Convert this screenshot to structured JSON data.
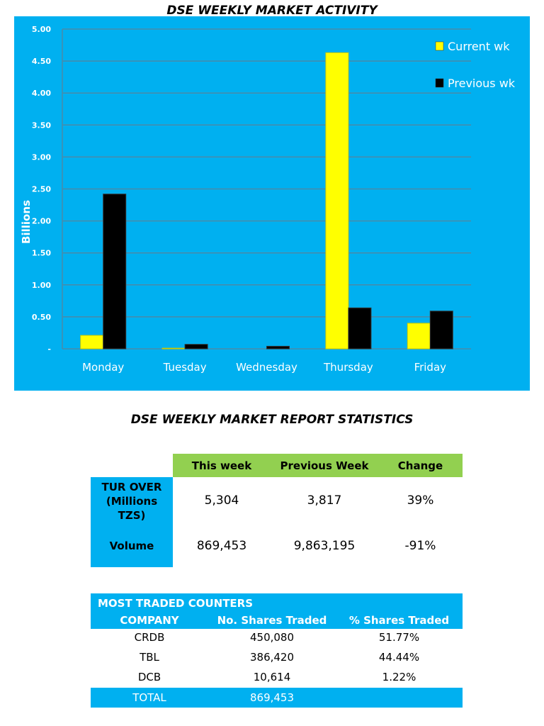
{
  "chart_data": {
    "type": "bar",
    "title": "DSE WEEKLY MARKET ACTIVITY",
    "ylabel": "Billions",
    "xlabel": "",
    "categories": [
      "Monday",
      "Tuesday",
      "Wednesday",
      "Thursday",
      "Friday"
    ],
    "series": [
      {
        "name": "Current wk",
        "color": "#ffff00",
        "values": [
          0.21,
          0.01,
          0.0,
          4.63,
          0.4
        ]
      },
      {
        "name": "Previous wk",
        "color": "#000000",
        "values": [
          2.42,
          0.07,
          0.04,
          0.64,
          0.59
        ]
      }
    ],
    "ylim": [
      0,
      5
    ],
    "yticks": [
      "-",
      "0.50",
      "1.00",
      "1.50",
      "2.00",
      "2.50",
      "3.00",
      "3.50",
      "4.00",
      "4.50",
      "5.00"
    ],
    "grid": true,
    "legend": "top-right",
    "background": "#00b0f0"
  },
  "stats": {
    "title": "DSE WEEKLY MARKET REPORT STATISTICS",
    "headers": [
      "This week",
      "Previous Week",
      "Change"
    ],
    "rows": [
      {
        "label": "TUR OVER (Millions TZS)",
        "values": [
          "5,304",
          "3,817",
          "39%"
        ]
      },
      {
        "label": "Volume",
        "values": [
          "869,453",
          "9,863,195",
          "-91%"
        ]
      }
    ]
  },
  "counters": {
    "title": "MOST TRADED COUNTERS",
    "headers": [
      "COMPANY",
      "No. Shares Traded",
      "% Shares Traded"
    ],
    "rows": [
      [
        "CRDB",
        "450,080",
        "51.77%"
      ],
      [
        "TBL",
        "386,420",
        "44.44%"
      ],
      [
        "DCB",
        "10,614",
        "1.22%"
      ]
    ],
    "total_label": "TOTAL",
    "total_value": "869,453"
  }
}
